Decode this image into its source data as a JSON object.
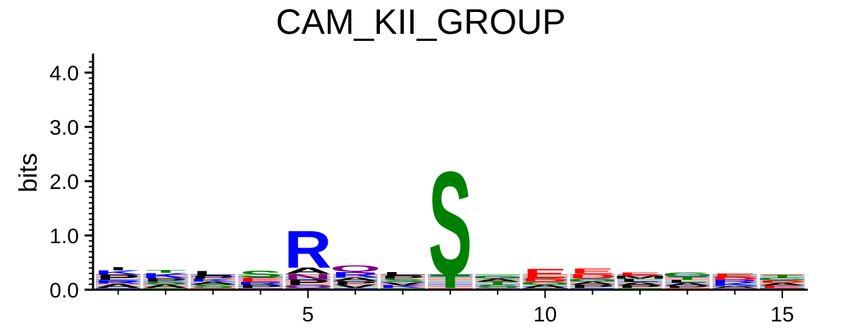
{
  "chart_data": {
    "type": "sequence-logo",
    "title": "CAM_KII_GROUP",
    "ylabel": "bits",
    "ylim": [
      0,
      4.3
    ],
    "y_ticks": [
      0.0,
      1.0,
      2.0,
      3.0,
      4.0
    ],
    "y_tick_labels": [
      "0.0",
      "1.0",
      "2.0",
      "3.0",
      "4.0"
    ],
    "x_ticks": [
      5,
      10,
      15
    ],
    "x_tick_labels": [
      "5",
      "10",
      "15"
    ],
    "positions": [
      1,
      2,
      3,
      4,
      5,
      6,
      7,
      8,
      9,
      10,
      11,
      12,
      13,
      14,
      15
    ],
    "color_scheme": {
      "S": "#008000",
      "T": "#008000",
      "G": "#008000",
      "Y": "#008000",
      "C": "#008000",
      "N": "#800080",
      "Q": "#800080",
      "K": "#0000ff",
      "R": "#0000ff",
      "H": "#0000ff",
      "D": "#ff0000",
      "E": "#ff0000",
      "A": "#000000",
      "V": "#000000",
      "L": "#000000",
      "I": "#000000",
      "P": "#000000",
      "W": "#000000",
      "F": "#000000",
      "M": "#000000"
    },
    "stacks": [
      [
        [
          "A",
          0.08
        ],
        [
          "R",
          0.07
        ],
        [
          "P",
          0.1
        ],
        [
          "K",
          0.08
        ],
        [
          "I",
          0.06
        ]
      ],
      [
        [
          "A",
          0.07
        ],
        [
          "S",
          0.05
        ],
        [
          "P",
          0.06
        ],
        [
          "K",
          0.1
        ],
        [
          "T",
          0.05
        ]
      ],
      [
        [
          "S",
          0.07
        ],
        [
          "A",
          0.05
        ],
        [
          "K",
          0.05
        ],
        [
          "P",
          0.06
        ],
        [
          "L",
          0.09
        ]
      ],
      [
        [
          "P",
          0.06
        ],
        [
          "R",
          0.05
        ],
        [
          "E",
          0.08
        ],
        [
          "S",
          0.14
        ]
      ],
      [
        [
          "Q",
          0.06
        ],
        [
          "P",
          0.1
        ],
        [
          "N",
          0.1
        ],
        [
          "A",
          0.12
        ],
        [
          "R",
          0.7
        ]
      ],
      [
        [
          "V",
          0.07
        ],
        [
          "P",
          0.06
        ],
        [
          "A",
          0.07
        ],
        [
          "R",
          0.1
        ],
        [
          "Q",
          0.12
        ]
      ],
      [
        [
          "K",
          0.05
        ],
        [
          "V",
          0.06
        ],
        [
          "S",
          0.06
        ],
        [
          "P",
          0.06
        ],
        [
          "L",
          0.07
        ]
      ],
      [
        [
          "T",
          0.26
        ],
        [
          "S",
          1.95
        ]
      ],
      [
        [
          "S",
          0.06
        ],
        [
          "T",
          0.06
        ],
        [
          "A",
          0.05
        ],
        [
          "G",
          0.06
        ]
      ],
      [
        [
          "A",
          0.06
        ],
        [
          "G",
          0.06
        ],
        [
          "D",
          0.06
        ],
        [
          "E",
          0.18
        ]
      ],
      [
        [
          "P",
          0.06
        ],
        [
          "A",
          0.06
        ],
        [
          "G",
          0.06
        ],
        [
          "D",
          0.08
        ],
        [
          "E",
          0.1
        ]
      ],
      [
        [
          "P",
          0.05
        ],
        [
          "A",
          0.06
        ],
        [
          "L",
          0.06
        ],
        [
          "M",
          0.06
        ],
        [
          "E",
          0.06
        ]
      ],
      [
        [
          "P",
          0.04
        ],
        [
          "A",
          0.06
        ],
        [
          "L",
          0.05
        ],
        [
          "T",
          0.06
        ],
        [
          "G",
          0.08
        ]
      ],
      [
        [
          "A",
          0.04
        ],
        [
          "K",
          0.06
        ],
        [
          "R",
          0.05
        ],
        [
          "D",
          0.06
        ],
        [
          "E",
          0.06
        ]
      ],
      [
        [
          "E",
          0.05
        ],
        [
          "A",
          0.05
        ],
        [
          "D",
          0.04
        ],
        [
          "G",
          0.05
        ],
        [
          "T",
          0.05
        ]
      ]
    ]
  }
}
